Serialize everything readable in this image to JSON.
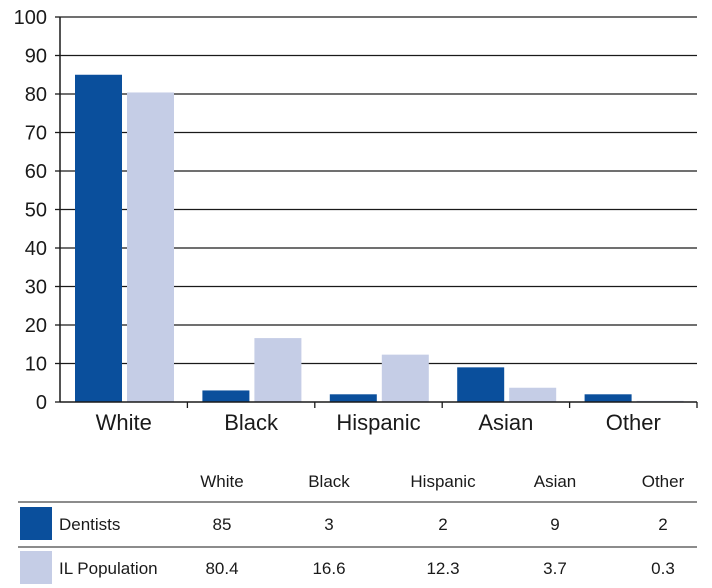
{
  "chart_data": {
    "type": "bar",
    "categories": [
      "White",
      "Black",
      "Hispanic",
      "Asian",
      "Other"
    ],
    "series": [
      {
        "name": "Dentists",
        "values": [
          85,
          3,
          2,
          9,
          2
        ],
        "color": "#0a4f9c"
      },
      {
        "name": "IL Population",
        "values": [
          80.4,
          16.6,
          12.3,
          3.7,
          0.3
        ],
        "color": "#c5cde6"
      }
    ],
    "ylim": [
      0,
      100
    ],
    "yticks": [
      0,
      10,
      20,
      30,
      40,
      50,
      60,
      70,
      80,
      90,
      100
    ],
    "grid": true,
    "data_table": {
      "headers": [
        "White",
        "Black",
        "Hispanic",
        "Asian",
        "Other"
      ],
      "rows": [
        {
          "label": "Dentists",
          "values": [
            "85",
            "3",
            "2",
            "9",
            "2"
          ]
        },
        {
          "label": "IL Population",
          "values": [
            "80.4",
            "16.6",
            "12.3",
            "3.7",
            "0.3"
          ]
        }
      ]
    }
  }
}
